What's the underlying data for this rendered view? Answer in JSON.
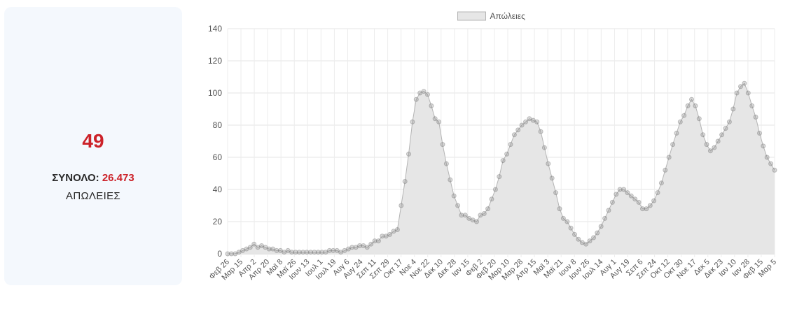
{
  "summary": {
    "today_value": "49",
    "total_label": "ΣΥΝΟΛΟ:",
    "total_value": "26.473",
    "caption": "ΑΠΩΛΕΙΕΣ"
  },
  "colors": {
    "accent": "#cc2229",
    "card_bg": "#f4f8fd",
    "series_fill": "#e6e6e6",
    "series_line": "#b4b4b4",
    "point": "#7a7a7a"
  },
  "chart_data": {
    "type": "line",
    "title": "",
    "xlabel": "",
    "ylabel": "",
    "legend_position": "top-center",
    "grid": true,
    "ylim": [
      0,
      140
    ],
    "yticks": [
      0,
      20,
      40,
      60,
      80,
      100,
      120,
      140
    ],
    "x_start": "Φεβ 26",
    "x_end": "Μαρ 7",
    "tick_labels": [
      "Φεβ 26",
      "Μαρ 15",
      "Απρ 2",
      "Απρ 20",
      "Μαϊ 8",
      "Μαϊ 26",
      "Ιουν 13",
      "Ιουλ 1",
      "Ιουλ 19",
      "Αυγ 6",
      "Αυγ 24",
      "Σεπ 11",
      "Σεπ 29",
      "Οκτ 17",
      "Νοε 4",
      "Νοε 22",
      "Δεκ 10",
      "Δεκ 28",
      "Ιαν 15",
      "Φεβ 2",
      "Φεβ 20",
      "Μαρ 10",
      "Μαρ 28",
      "Απρ 15",
      "Μαϊ 3",
      "Μαϊ 21",
      "Ιουν 8",
      "Ιουν 26",
      "Ιουλ 14",
      "Αυγ 1",
      "Αυγ 19",
      "Σεπ 6",
      "Σεπ 24",
      "Οκτ 12",
      "Οκτ 30",
      "Νοε 17",
      "Δεκ 5",
      "Δεκ 23",
      "Ιαν 10",
      "Ιαν 28",
      "Φεβ 15",
      "Μαρ 5"
    ],
    "series": [
      {
        "name": "Απώλειες",
        "values": [
          0,
          0,
          0,
          1,
          2,
          3,
          4,
          6,
          4,
          5,
          4,
          3,
          3,
          2,
          2,
          1,
          2,
          1,
          1,
          1,
          1,
          1,
          1,
          1,
          1,
          1,
          1,
          2,
          2,
          2,
          1,
          2,
          3,
          4,
          4,
          5,
          5,
          4,
          6,
          8,
          8,
          11,
          11,
          12,
          14,
          15,
          30,
          45,
          62,
          82,
          96,
          100,
          101,
          99,
          92,
          84,
          82,
          68,
          56,
          46,
          36,
          30,
          24,
          24,
          22,
          21,
          20,
          24,
          25,
          28,
          34,
          40,
          48,
          58,
          62,
          68,
          74,
          77,
          80,
          82,
          84,
          83,
          82,
          76,
          66,
          56,
          47,
          38,
          28,
          22,
          20,
          16,
          12,
          9,
          7,
          6,
          8,
          10,
          13,
          17,
          22,
          27,
          32,
          37,
          40,
          40,
          38,
          36,
          34,
          32,
          28,
          28,
          30,
          33,
          38,
          44,
          52,
          60,
          68,
          75,
          82,
          86,
          92,
          96,
          92,
          84,
          74,
          68,
          64,
          66,
          70,
          74,
          78,
          82,
          90,
          100,
          104,
          106,
          100,
          92,
          85,
          75,
          67,
          60,
          56,
          52
        ]
      }
    ],
    "annotations": []
  }
}
